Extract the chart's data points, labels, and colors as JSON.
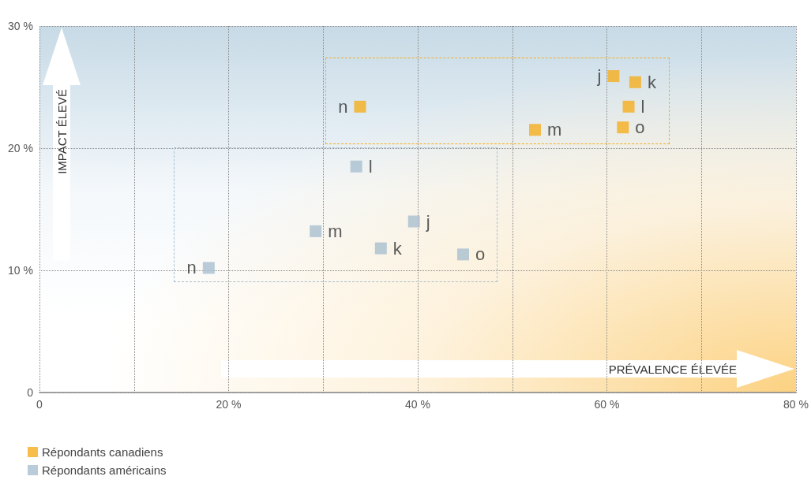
{
  "chart_data": {
    "type": "scatter",
    "series": [
      {
        "name": "Répondants canadiens",
        "color": "#f5ae1f",
        "x": [
          60.7,
          63.0,
          62.3,
          52.4,
          33.9,
          61.7
        ],
        "values": [
          25.9,
          25.4,
          23.4,
          21.5,
          23.4,
          21.7
        ],
        "value_labels": [
          "j",
          "k",
          "l",
          "m",
          "n",
          "o"
        ]
      },
      {
        "name": "Répondants américains",
        "color": "#a9bfd0",
        "x": [
          39.6,
          36.1,
          33.5,
          29.2,
          17.9,
          44.8
        ],
        "values": [
          14.0,
          11.8,
          18.5,
          13.2,
          10.2,
          11.3
        ],
        "value_labels": [
          "j",
          "k",
          "l",
          "m",
          "n",
          "o"
        ]
      }
    ],
    "xlim": [
      0,
      80
    ],
    "xticks": [
      0,
      {
        "value": 10,
        "label": null
      },
      {
        "value": 20,
        "label": "20 %"
      },
      {
        "value": 30,
        "label": null
      },
      {
        "value": 40,
        "label": "40 %"
      },
      {
        "value": 50,
        "label": null
      },
      {
        "value": 60,
        "label": "60 %"
      },
      {
        "value": 70,
        "label": null
      },
      {
        "value": 80,
        "label": "80 %"
      }
    ],
    "ylim": [
      0,
      30
    ],
    "yticks": [
      0,
      {
        "value": 10,
        "label": "10 %"
      },
      {
        "value": 20,
        "label": "20 %"
      },
      {
        "value": 30,
        "label": "30 %"
      }
    ],
    "annotations": [
      "IMPACT ÉLEVÉ",
      "PRÉVALENCE ÉLEVÉE"
    ],
    "grid": true,
    "legend": "bottom left",
    "marker": "square"
  }
}
